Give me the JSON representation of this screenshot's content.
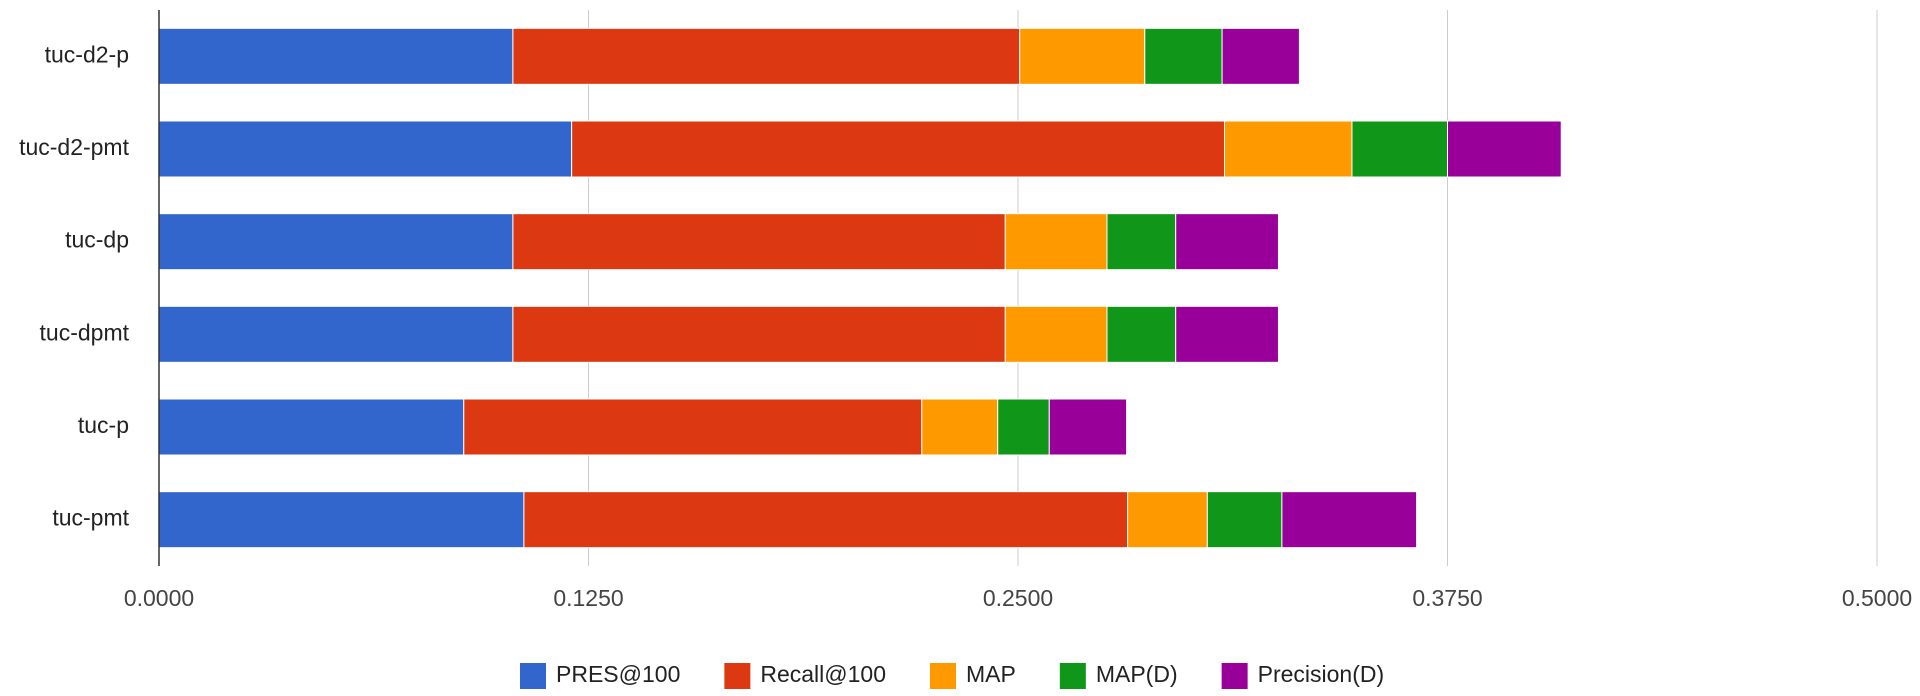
{
  "chart_data": {
    "type": "stacked_barh",
    "categories": [
      "tuc-d2-p",
      "tuc-d2-pmt",
      "tuc-dp",
      "tuc-dpmt",
      "tuc-p",
      "tuc-pmt"
    ],
    "series": [
      {
        "name": "PRES@100",
        "color": "#3366cc",
        "values": [
          0.103,
          0.1201,
          0.103,
          0.103,
          0.0887,
          0.1062
        ]
      },
      {
        "name": "Recall@100",
        "color": "#dc3912",
        "values": [
          0.1475,
          0.19,
          0.1433,
          0.1433,
          0.1333,
          0.1757
        ]
      },
      {
        "name": "MAP",
        "color": "#ff9900",
        "values": [
          0.0364,
          0.0371,
          0.0296,
          0.0296,
          0.0221,
          0.0232
        ]
      },
      {
        "name": "MAP(D)",
        "color": "#109618",
        "values": [
          0.0225,
          0.0278,
          0.02,
          0.02,
          0.015,
          0.0217
        ]
      },
      {
        "name": "Precision(D)",
        "color": "#990099",
        "values": [
          0.0225,
          0.0331,
          0.0299,
          0.0299,
          0.0225,
          0.0392
        ]
      }
    ],
    "xlim": [
      0,
      0.5
    ],
    "xticks": [
      {
        "value": 0,
        "label": "0.0000"
      },
      {
        "value": 0.125,
        "label": "0.1250"
      },
      {
        "value": 0.25,
        "label": "0.2500"
      },
      {
        "value": 0.375,
        "label": "0.3750"
      },
      {
        "value": 0.5,
        "label": "0.5000"
      }
    ],
    "grid": true,
    "legend": "bottom"
  }
}
